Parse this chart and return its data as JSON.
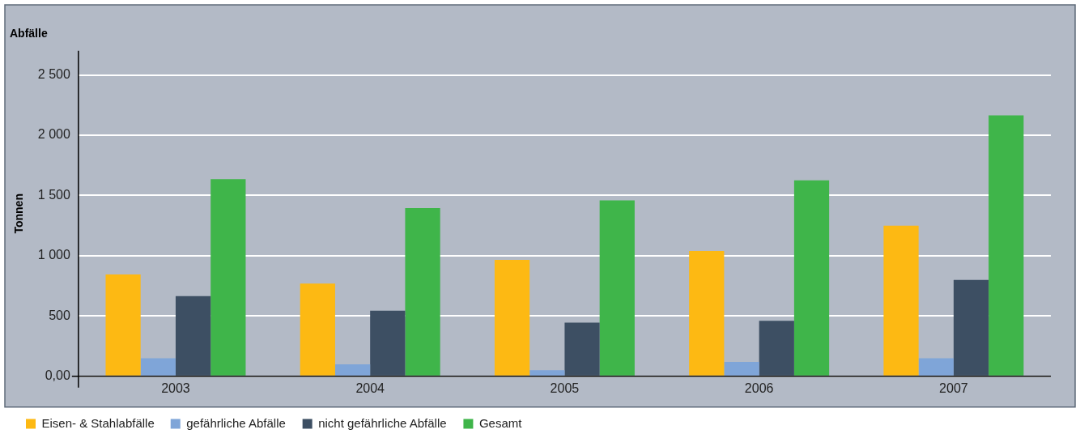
{
  "chart_data": {
    "type": "bar",
    "title": "Abfälle",
    "ylabel": "Tonnen",
    "categories": [
      "2003",
      "2004",
      "2005",
      "2006",
      "2007"
    ],
    "series": [
      {
        "name": "Eisen- & Stahlabfälle",
        "color": "#fdb913",
        "values": [
          845,
          770,
          965,
          1040,
          1250
        ]
      },
      {
        "name": "gefährliche Abfälle",
        "color": "#7fa5d8",
        "values": [
          150,
          100,
          50,
          120,
          150
        ]
      },
      {
        "name": "nicht gefährliche Abfälle",
        "color": "#3d4f63",
        "values": [
          665,
          545,
          445,
          460,
          800
        ]
      },
      {
        "name": "Gesamt",
        "color": "#3fb54a",
        "values": [
          1635,
          1395,
          1460,
          1625,
          2165
        ]
      }
    ],
    "ylim": [
      0,
      2700
    ],
    "yticks": [
      {
        "value": 0,
        "label": "0,00"
      },
      500,
      {
        "value": 1000,
        "label": "1 000"
      },
      {
        "value": 1500,
        "label": "1 500"
      },
      {
        "value": 2000,
        "label": "2 000"
      },
      {
        "value": 2500,
        "label": "2 500"
      }
    ],
    "grid": "y",
    "legend": "bottom left"
  }
}
